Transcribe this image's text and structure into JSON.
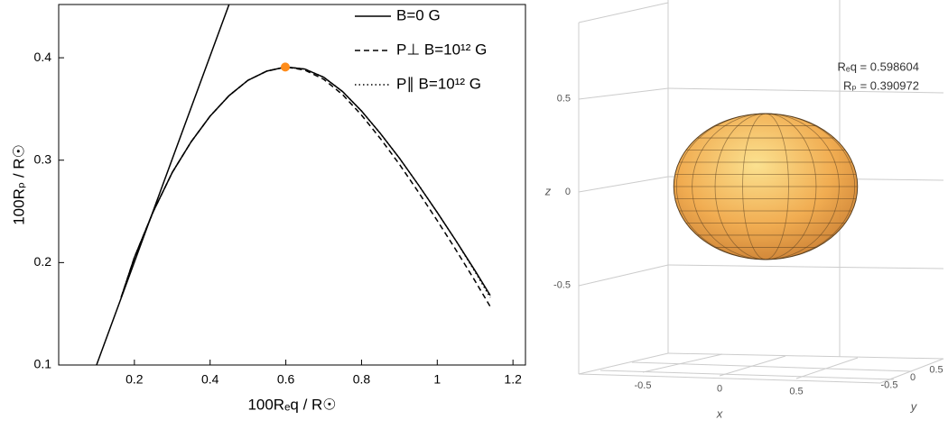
{
  "chart_data": [
    {
      "type": "line",
      "xlabel": "100Rₑq / R☉",
      "ylabel": "100Rₚ / R☉",
      "xlim": [
        0,
        1.233
      ],
      "ylim": [
        0.1,
        0.452
      ],
      "xticks": [
        0.2,
        0.4,
        0.6,
        0.8,
        1.0,
        1.2
      ],
      "yticks": [
        0.1,
        0.2,
        0.3,
        0.4
      ],
      "legend": "upper right",
      "series": [
        {
          "color": "#000000",
          "linestyle": "solid",
          "x": [
            0.1,
            0.45
          ],
          "values": [
            0.1,
            0.452
          ]
        },
        {
          "name": "B=0 G",
          "color": "#000000",
          "linestyle": "solid",
          "x": [
            0.165,
            0.2,
            0.25,
            0.3,
            0.35,
            0.4,
            0.45,
            0.5,
            0.55,
            0.6,
            0.65,
            0.7,
            0.75,
            0.8,
            0.85,
            0.9,
            0.95,
            1.0,
            1.05,
            1.1,
            1.14
          ],
          "values": [
            0.166,
            0.205,
            0.25,
            0.288,
            0.318,
            0.343,
            0.363,
            0.378,
            0.387,
            0.391,
            0.389,
            0.381,
            0.367,
            0.348,
            0.326,
            0.302,
            0.276,
            0.249,
            0.221,
            0.192,
            0.168
          ]
        },
        {
          "name": "P⊥  B=10¹² G",
          "color": "#000000",
          "linestyle": "dashed",
          "x": [
            0.165,
            0.2,
            0.25,
            0.3,
            0.35,
            0.4,
            0.45,
            0.5,
            0.55,
            0.6,
            0.65,
            0.7,
            0.75,
            0.8,
            0.85,
            0.9,
            0.95,
            1.0,
            1.05,
            1.1,
            1.14
          ],
          "values": [
            0.166,
            0.205,
            0.25,
            0.288,
            0.318,
            0.343,
            0.363,
            0.378,
            0.387,
            0.391,
            0.388,
            0.379,
            0.364,
            0.344,
            0.321,
            0.296,
            0.269,
            0.241,
            0.212,
            0.182,
            0.157
          ]
        },
        {
          "name": "P∥  B=10¹² G",
          "color": "#000000",
          "linestyle": "dotted",
          "x": [
            0.165,
            0.2,
            0.25,
            0.3,
            0.35,
            0.4,
            0.45,
            0.5,
            0.55,
            0.6,
            0.65,
            0.7,
            0.75,
            0.8,
            0.85,
            0.9,
            0.95,
            1.0,
            1.05,
            1.1,
            1.14
          ],
          "values": [
            0.166,
            0.205,
            0.25,
            0.288,
            0.318,
            0.343,
            0.363,
            0.378,
            0.387,
            0.391,
            0.389,
            0.381,
            0.367,
            0.348,
            0.326,
            0.302,
            0.276,
            0.249,
            0.221,
            0.191,
            0.166
          ]
        }
      ],
      "point": {
        "x": 0.598604,
        "y": 0.390972,
        "color": "#ff8c1a"
      }
    },
    {
      "type": "ellipsoid3d",
      "annotations": [
        "Rₑq = 0.598604",
        "Rₚ = 0.390972"
      ],
      "req": 0.598604,
      "rp": 0.390972,
      "color": "#f0a848",
      "xlabel": "x",
      "ylabel": "y",
      "zlabel": "z",
      "xlim": [
        -1,
        1
      ],
      "ylim": [
        -1,
        1
      ],
      "zlim": [
        -1,
        1
      ],
      "xticks": [
        -0.5,
        0,
        0.5
      ],
      "yticks": [
        -0.5,
        0,
        0.5
      ],
      "zticks": [
        0.5,
        0,
        -0.5
      ]
    }
  ]
}
